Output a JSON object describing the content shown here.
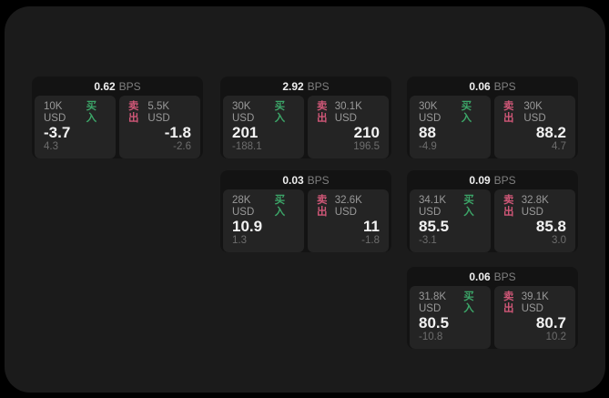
{
  "page": {
    "bps_unit": "BPS",
    "buy_label": "买入",
    "sell_label": "卖出",
    "colors": {
      "background": "#000000",
      "panel_background": "#1b1b1b",
      "card_background": "#131313",
      "tile_background": "#242424",
      "buy_accent": "#3ca568",
      "sell_accent": "#cf5777"
    }
  },
  "cards": [
    {
      "bps": "0.62",
      "buy": {
        "amount": "10K USD",
        "value": "-3.7",
        "sub": "4.3"
      },
      "sell": {
        "amount": "5.5K USD",
        "value": "-1.8",
        "sub": "-2.6"
      }
    },
    {
      "bps": "2.92",
      "buy": {
        "amount": "30K USD",
        "value": "201",
        "sub": "-188.1"
      },
      "sell": {
        "amount": "30.1K USD",
        "value": "210",
        "sub": "196.5"
      }
    },
    {
      "bps": "0.06",
      "buy": {
        "amount": "30K USD",
        "value": "88",
        "sub": "-4.9"
      },
      "sell": {
        "amount": "30K USD",
        "value": "88.2",
        "sub": "4.7"
      }
    },
    {
      "bps": "0.03",
      "buy": {
        "amount": "28K USD",
        "value": "10.9",
        "sub": "1.3"
      },
      "sell": {
        "amount": "32.6K USD",
        "value": "11",
        "sub": "-1.8"
      }
    },
    {
      "bps": "0.09",
      "buy": {
        "amount": "34.1K USD",
        "value": "85.5",
        "sub": "-3.1"
      },
      "sell": {
        "amount": "32.8K USD",
        "value": "85.8",
        "sub": "3.0"
      }
    },
    {
      "bps": "0.06",
      "buy": {
        "amount": "31.8K USD",
        "value": "80.5",
        "sub": "-10.8"
      },
      "sell": {
        "amount": "39.1K USD",
        "value": "80.7",
        "sub": "10.2"
      }
    }
  ]
}
